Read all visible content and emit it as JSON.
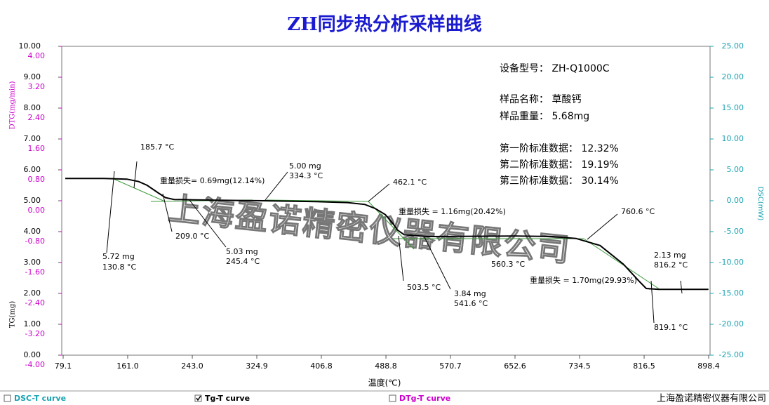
{
  "chart_data": {
    "type": "line",
    "title": "ZH同步热分析采样曲线",
    "x_label": "温度(℃)",
    "y_label": "TG(mg)",
    "y3_label": "DTG(mg/min)",
    "y2_label": "DSC(mW)",
    "xlim": [
      79.1,
      898.4
    ],
    "xticks": [
      79.1,
      {
        "value": 161.0,
        "label": "161.0"
      },
      {
        "value": 243.0,
        "label": "243.0"
      },
      324.9,
      406.8,
      488.8,
      570.7,
      652.6,
      734.5,
      816.5,
      898.4
    ],
    "ylim": [
      0,
      10
    ],
    "yticks": [
      {
        "value": 0,
        "label": "0.00"
      },
      {
        "value": 1,
        "label": "1.00"
      },
      {
        "value": 2,
        "label": "2.00"
      },
      {
        "value": 3,
        "label": "3.00"
      },
      {
        "value": 4,
        "label": "4.00"
      },
      {
        "value": 5,
        "label": "5.00"
      },
      {
        "value": 6,
        "label": "6.00"
      },
      {
        "value": 7,
        "label": "7.00"
      },
      {
        "value": 8,
        "label": "8.00"
      },
      {
        "value": 9,
        "label": "9.00"
      },
      {
        "value": 10,
        "label": "10.00"
      }
    ],
    "y3lim": [
      -4,
      4
    ],
    "y3ticks": [
      {
        "value": -4,
        "label": "-4.00"
      },
      {
        "value": -3.2,
        "label": "-3.20"
      },
      {
        "value": -2.4,
        "label": "-2.40"
      },
      {
        "value": -1.6,
        "label": "-1.60"
      },
      {
        "value": -0.8,
        "label": "-0.80"
      },
      {
        "value": 0,
        "label": "0.00"
      },
      {
        "value": 0.8,
        "label": "0.80"
      },
      {
        "value": 1.6,
        "label": "1.60"
      },
      {
        "value": 2.4,
        "label": "2.40"
      },
      {
        "value": 3.2,
        "label": "3.20"
      },
      {
        "value": 4,
        "label": "4.00"
      }
    ],
    "y3color": "#cc00cc",
    "y2lim": [
      -25,
      25
    ],
    "y2ticks": [
      {
        "value": -25,
        "label": "-25.00"
      },
      {
        "value": -20,
        "label": "-20.00"
      },
      {
        "value": -15,
        "label": "-15.00"
      },
      {
        "value": -10,
        "label": "-10.00"
      },
      {
        "value": -5,
        "label": "-5.00"
      },
      {
        "value": 0,
        "label": "0.00"
      },
      {
        "value": 5,
        "label": "5.00"
      },
      {
        "value": 10,
        "label": "10.00"
      },
      {
        "value": 15,
        "label": "15.00"
      },
      {
        "value": 20,
        "label": "20.00"
      },
      {
        "value": 25,
        "label": "25.00"
      }
    ],
    "y2color": "#1aa3b3",
    "series": [
      {
        "name": "Tg-T curve",
        "color": "#000000",
        "x": [
          81.8,
          130.8,
          160,
          175,
          185.7,
          200,
          209,
          220,
          245.4,
          300,
          334.3,
          400,
          440,
          462.1,
          475,
          488,
          498,
          503.5,
          512,
          541.6,
          600,
          652,
          700,
          730,
          760.6,
          790,
          810,
          819.1,
          835,
          898
        ],
        "values": [
          5.72,
          5.72,
          5.7,
          5.62,
          5.5,
          5.25,
          5.1,
          5.04,
          5.03,
          5.01,
          5.0,
          4.97,
          4.94,
          4.88,
          4.75,
          4.55,
          4.25,
          4.05,
          3.9,
          3.84,
          3.85,
          3.86,
          3.84,
          3.78,
          3.55,
          2.95,
          2.4,
          2.16,
          2.13,
          2.13
        ]
      }
    ],
    "legend": [
      {
        "label": "DSC-T curve",
        "checked": false,
        "color": "#1aa3b3"
      },
      {
        "label": "Tg-T curve",
        "checked": true,
        "color": "#000000"
      },
      {
        "label": "DTg-T curve",
        "checked": false,
        "color": "#cc00cc"
      }
    ],
    "annotations": [
      "185.7 °C",
      "重量损失= 0.69mg(12.14%)",
      "209.0 °C",
      "5.03 mg",
      "245.4 °C",
      "5.72 mg",
      "130.8 °C",
      "5.00 mg",
      "334.3 °C",
      "462.1 °C",
      "重量损失 = 1.16mg(20.42%)",
      "503.5 °C",
      "3.84 mg",
      "541.6 °C",
      "560.3 °C",
      "760.6 °C",
      "重量损失 = 1.70mg(29.93%)",
      "2.13 mg",
      "816.2 °C",
      "819.1 °C"
    ],
    "info": [
      "设备型号： ZH-Q1000C",
      "样品名称： 草酸钙",
      "样品重量： 5.68mg",
      "第一阶标准数据： 12.32%",
      "第二阶标准数据： 19.19%",
      "第三阶标准数据： 30.14%"
    ],
    "watermark": "上海盈诺精密仪器有限公司",
    "company": "上海盈诺精密仪器有限公司"
  }
}
